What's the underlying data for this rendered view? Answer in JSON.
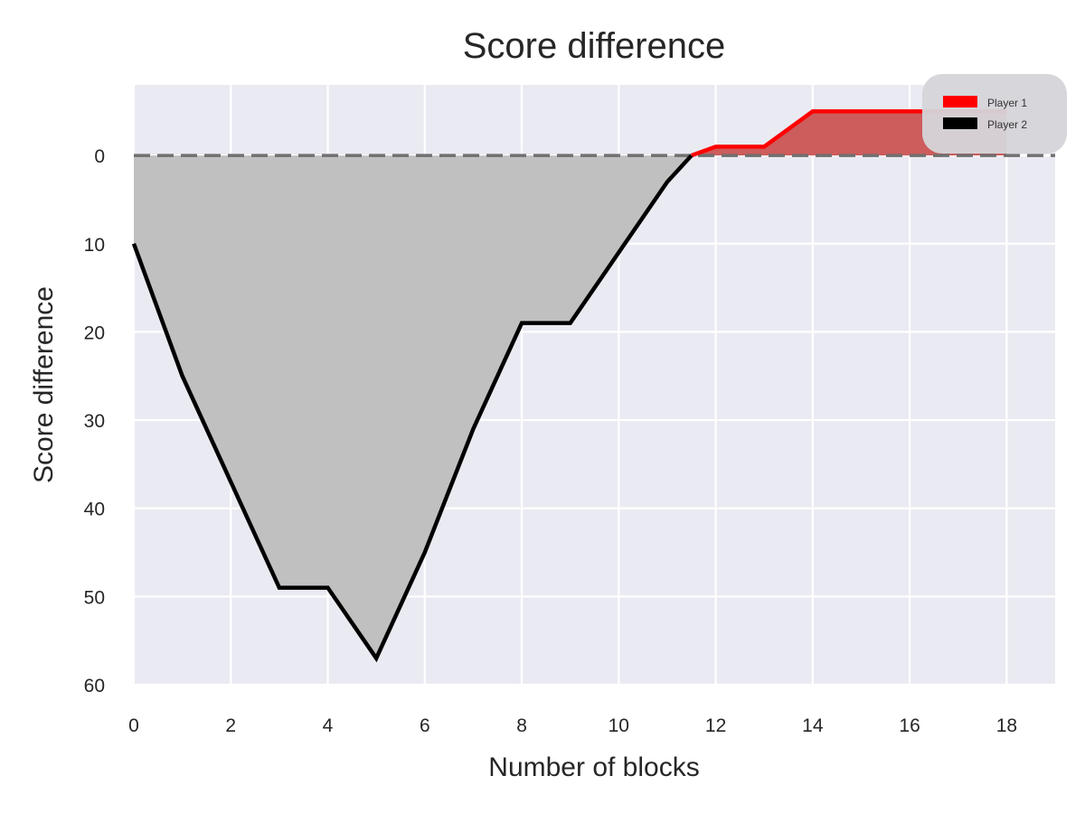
{
  "chart_data": {
    "type": "area",
    "title": "Score difference",
    "xlabel": "Number of blocks",
    "ylabel": "Score difference",
    "xlim": [
      0,
      19
    ],
    "ylim": [
      60,
      -8
    ],
    "y_inverted": true,
    "x_ticks": [
      0,
      2,
      4,
      6,
      8,
      10,
      12,
      14,
      16,
      18
    ],
    "y_ticks": [
      0,
      10,
      20,
      30,
      40,
      50,
      60
    ],
    "grid": true,
    "baseline": 0,
    "legend_position": "top-right",
    "series": [
      {
        "name": "Player 1",
        "color": "#ff0000",
        "fill_color": "#cd5c5c",
        "x": [
          11.5,
          12,
          13,
          14,
          15,
          16,
          17,
          18
        ],
        "y": [
          0,
          -1,
          -1,
          -5,
          -5,
          -5,
          -5,
          -5
        ]
      },
      {
        "name": "Player 2",
        "color": "#000000",
        "fill_color": "#c0c0c0",
        "x": [
          0,
          1,
          2,
          3,
          4,
          5,
          6,
          7,
          8,
          9,
          10,
          11,
          11.5
        ],
        "y": [
          10,
          25,
          37,
          49,
          49,
          57,
          45,
          31,
          19,
          19,
          11,
          3,
          0
        ]
      }
    ]
  }
}
